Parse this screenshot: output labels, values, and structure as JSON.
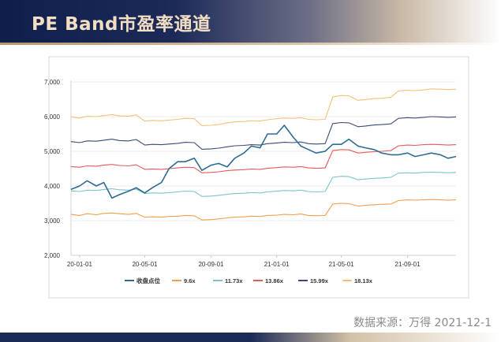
{
  "header": {
    "title": "PE Band市盈率通道"
  },
  "footer": {
    "source": "数据来源：万得 2021-12-1"
  },
  "chart_data": {
    "type": "line",
    "title": "PE Band市盈率通道",
    "ylim": [
      2000,
      7000
    ],
    "y_ticks": [
      2000,
      3000,
      4000,
      5000,
      6000,
      7000
    ],
    "y_tick_labels": [
      "2,000",
      "3,000",
      "4,000",
      "5,000",
      "6,000",
      "7,000"
    ],
    "x_range": [
      "2019-12-16",
      "2021-11-30"
    ],
    "x_ticks": [
      {
        "label": "20-01-01",
        "date": "2020-01-01"
      },
      {
        "label": "20-05-01",
        "date": "2020-05-01"
      },
      {
        "label": "20-09-01",
        "date": "2020-09-01"
      },
      {
        "label": "21-01-01",
        "date": "2021-01-01"
      },
      {
        "label": "21-05-01",
        "date": "2021-05-01"
      },
      {
        "label": "21-09-01",
        "date": "2021-09-01"
      }
    ],
    "legend_position": "bottom",
    "x": [
      "2019-12-16",
      "2020-01-01",
      "2020-01-15",
      "2020-02-01",
      "2020-02-15",
      "2020-03-01",
      "2020-03-15",
      "2020-04-01",
      "2020-04-15",
      "2020-05-01",
      "2020-05-15",
      "2020-06-01",
      "2020-06-15",
      "2020-07-01",
      "2020-07-15",
      "2020-08-01",
      "2020-08-15",
      "2020-09-01",
      "2020-09-15",
      "2020-10-01",
      "2020-10-15",
      "2020-11-01",
      "2020-11-15",
      "2020-12-01",
      "2020-12-15",
      "2021-01-01",
      "2021-01-15",
      "2021-02-01",
      "2021-02-15",
      "2021-03-01",
      "2021-03-15",
      "2021-04-01",
      "2021-04-15",
      "2021-05-01",
      "2021-05-15",
      "2021-06-01",
      "2021-06-15",
      "2021-07-01",
      "2021-07-15",
      "2021-08-01",
      "2021-08-15",
      "2021-09-01",
      "2021-09-15",
      "2021-10-01",
      "2021-10-15",
      "2021-11-01",
      "2021-11-15",
      "2021-11-30"
    ],
    "series": [
      {
        "name": "收盘点位",
        "color": "#2e6b94",
        "width": 1.6,
        "values": [
          3900,
          4000,
          4150,
          4000,
          4100,
          3650,
          3750,
          3850,
          3950,
          3800,
          3950,
          4100,
          4500,
          4700,
          4700,
          4800,
          4450,
          4600,
          4650,
          4550,
          4800,
          4950,
          5150,
          5100,
          5500,
          5500,
          5750,
          5400,
          5150,
          5050,
          4950,
          5000,
          5200,
          5200,
          5350,
          5150,
          5100,
          5050,
          4950,
          4900,
          4900,
          4950,
          4850,
          4900,
          4950,
          4900,
          4800,
          4850
        ]
      },
      {
        "name": "9.6x",
        "color": "#f0a04b",
        "width": 1.1,
        "values": [
          3180,
          3150,
          3200,
          3170,
          3210,
          3220,
          3200,
          3180,
          3210,
          3100,
          3110,
          3100,
          3120,
          3130,
          3150,
          3140,
          3020,
          3030,
          3050,
          3080,
          3100,
          3110,
          3130,
          3120,
          3150,
          3160,
          3180,
          3170,
          3190,
          3150,
          3140,
          3150,
          3480,
          3500,
          3490,
          3420,
          3440,
          3460,
          3470,
          3480,
          3580,
          3600,
          3590,
          3600,
          3610,
          3600,
          3590,
          3600
        ]
      },
      {
        "name": "11.73x",
        "color": "#7ac4cc",
        "width": 1.1,
        "values": [
          3860,
          3840,
          3880,
          3870,
          3900,
          3920,
          3890,
          3880,
          3910,
          3780,
          3800,
          3790,
          3810,
          3830,
          3850,
          3840,
          3700,
          3710,
          3730,
          3760,
          3780,
          3790,
          3810,
          3800,
          3830,
          3850,
          3870,
          3860,
          3880,
          3840,
          3830,
          3840,
          4250,
          4280,
          4270,
          4180,
          4200,
          4220,
          4230,
          4250,
          4370,
          4380,
          4370,
          4390,
          4400,
          4390,
          4380,
          4390
        ]
      },
      {
        "name": "13.86x",
        "color": "#e35b5b",
        "width": 1.1,
        "values": [
          4560,
          4540,
          4580,
          4570,
          4600,
          4620,
          4590,
          4580,
          4610,
          4480,
          4490,
          4480,
          4500,
          4520,
          4540,
          4530,
          4380,
          4390,
          4410,
          4440,
          4460,
          4470,
          4490,
          4480,
          4510,
          4530,
          4550,
          4540,
          4560,
          4520,
          4510,
          4520,
          5020,
          5050,
          5040,
          4950,
          4970,
          4990,
          5000,
          5020,
          5160,
          5180,
          5170,
          5190,
          5200,
          5190,
          5180,
          5190
        ]
      },
      {
        "name": "15.99x",
        "color": "#3a4a7a",
        "width": 1.1,
        "values": [
          5280,
          5250,
          5300,
          5290,
          5320,
          5350,
          5310,
          5300,
          5340,
          5180,
          5200,
          5190,
          5210,
          5230,
          5260,
          5250,
          5060,
          5070,
          5090,
          5130,
          5160,
          5170,
          5190,
          5180,
          5220,
          5240,
          5260,
          5250,
          5270,
          5220,
          5210,
          5220,
          5800,
          5830,
          5820,
          5710,
          5730,
          5760,
          5770,
          5790,
          5950,
          5970,
          5960,
          5980,
          6000,
          5990,
          5980,
          5990
        ]
      },
      {
        "name": "18.13x",
        "color": "#f3c278",
        "width": 1.1,
        "values": [
          5990,
          5960,
          6010,
          6000,
          6030,
          6060,
          6020,
          6010,
          6050,
          5870,
          5890,
          5880,
          5900,
          5920,
          5950,
          5940,
          5740,
          5750,
          5770,
          5820,
          5850,
          5860,
          5880,
          5870,
          5910,
          5940,
          5960,
          5950,
          5970,
          5920,
          5910,
          5920,
          6570,
          6610,
          6600,
          6470,
          6490,
          6520,
          6530,
          6560,
          6740,
          6760,
          6750,
          6770,
          6800,
          6790,
          6780,
          6790
        ]
      }
    ]
  }
}
